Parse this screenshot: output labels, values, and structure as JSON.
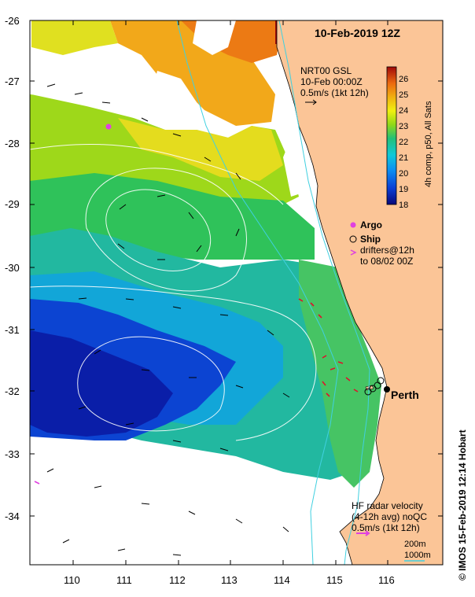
{
  "title": "10-Feb-2019 12Z",
  "product": {
    "line1": "NRT00 GSL",
    "line2": "10-Feb 00:00Z",
    "line3": "0.5m/s (1kt 12h)"
  },
  "colorbar": {
    "label": "4h comp, p50, All Sats",
    "ticks": [
      "18",
      "19",
      "20",
      "21",
      "22",
      "23",
      "24",
      "25",
      "26"
    ],
    "min": 18,
    "max": 26.7
  },
  "legend": {
    "argo": "Argo",
    "ship": "Ship",
    "drifters_line1": "drifters@12h",
    "drifters_line2": "to 08/02 00Z"
  },
  "city": "Perth",
  "hf_radar": {
    "line1": "HF radar velocity",
    "line2": "(4-12h avg) noQC",
    "line3": "0.5m/s (1kt 12h)"
  },
  "isobaths": {
    "a": "200m",
    "b": "1000m"
  },
  "credit": "© IMOS 15-Feb-2019 12:14 Hobart",
  "axes": {
    "lat_ticks": [
      "-26",
      "-27",
      "-28",
      "-29",
      "-30",
      "-31",
      "-32",
      "-33",
      "-34"
    ],
    "lon_ticks": [
      "110",
      "111",
      "112",
      "113",
      "114",
      "115",
      "116"
    ]
  },
  "colors": {
    "land": "#fbc597",
    "arrow": "#000000",
    "hf_arrow": "#e0102b",
    "argo": "#e040e0",
    "contour": "#ffffff",
    "shelf": "#40d0e0"
  }
}
